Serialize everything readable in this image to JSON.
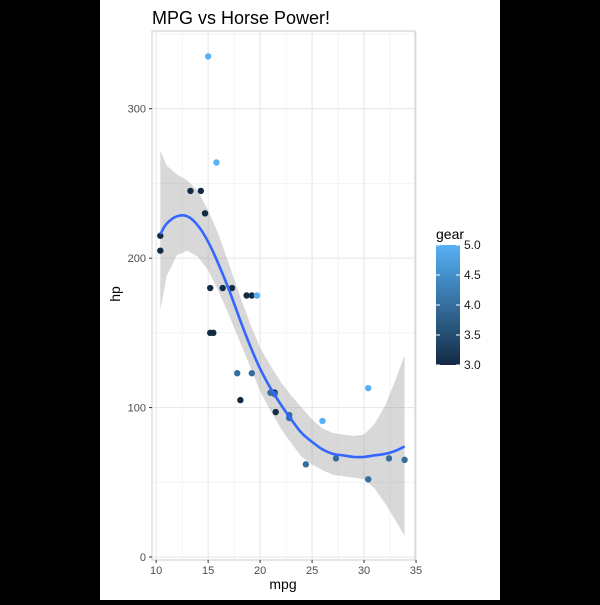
{
  "chart_data": {
    "type": "scatter",
    "title": "MPG vs Horse Power!",
    "xlabel": "mpg",
    "ylabel": "hp",
    "xlim": [
      9.6,
      34.9
    ],
    "ylim": [
      -2,
      352
    ],
    "x_ticks": [
      10,
      15,
      20,
      25,
      30,
      35
    ],
    "y_ticks": [
      0,
      100,
      200,
      300
    ],
    "grid": true,
    "legend": {
      "title": "gear",
      "placement": "right",
      "min": 3.0,
      "max": 5.0,
      "ticks": [
        "3.0",
        "3.5",
        "4.0",
        "4.5",
        "5.0"
      ],
      "color_low": "#132b43",
      "color_high": "#56b1f7"
    },
    "points": [
      {
        "x": 21.0,
        "y": 110,
        "gear": 4
      },
      {
        "x": 21.0,
        "y": 110,
        "gear": 4
      },
      {
        "x": 22.8,
        "y": 93,
        "gear": 4
      },
      {
        "x": 21.4,
        "y": 110,
        "gear": 3
      },
      {
        "x": 18.7,
        "y": 175,
        "gear": 3
      },
      {
        "x": 18.1,
        "y": 105,
        "gear": 3
      },
      {
        "x": 14.3,
        "y": 245,
        "gear": 3
      },
      {
        "x": 24.4,
        "y": 62,
        "gear": 4
      },
      {
        "x": 22.8,
        "y": 95,
        "gear": 4
      },
      {
        "x": 19.2,
        "y": 123,
        "gear": 4
      },
      {
        "x": 17.8,
        "y": 123,
        "gear": 4
      },
      {
        "x": 16.4,
        "y": 180,
        "gear": 3
      },
      {
        "x": 17.3,
        "y": 180,
        "gear": 3
      },
      {
        "x": 15.2,
        "y": 180,
        "gear": 3
      },
      {
        "x": 10.4,
        "y": 205,
        "gear": 3
      },
      {
        "x": 10.4,
        "y": 215,
        "gear": 3
      },
      {
        "x": 14.7,
        "y": 230,
        "gear": 3
      },
      {
        "x": 32.4,
        "y": 66,
        "gear": 4
      },
      {
        "x": 30.4,
        "y": 52,
        "gear": 4
      },
      {
        "x": 33.9,
        "y": 65,
        "gear": 4
      },
      {
        "x": 21.5,
        "y": 97,
        "gear": 3
      },
      {
        "x": 15.5,
        "y": 150,
        "gear": 3
      },
      {
        "x": 15.2,
        "y": 150,
        "gear": 3
      },
      {
        "x": 13.3,
        "y": 245,
        "gear": 3
      },
      {
        "x": 19.2,
        "y": 175,
        "gear": 3
      },
      {
        "x": 27.3,
        "y": 66,
        "gear": 4
      },
      {
        "x": 26.0,
        "y": 91,
        "gear": 5
      },
      {
        "x": 30.4,
        "y": 113,
        "gear": 5
      },
      {
        "x": 15.8,
        "y": 264,
        "gear": 5
      },
      {
        "x": 19.7,
        "y": 175,
        "gear": 5
      },
      {
        "x": 15.0,
        "y": 335,
        "gear": 5
      },
      {
        "x": 21.4,
        "y": 109,
        "gear": 4
      }
    ],
    "smooth": {
      "color": "#3366ff",
      "band_color": "#999999",
      "x": [
        10.4,
        11,
        12,
        13,
        14,
        15,
        16,
        17,
        18,
        19,
        20,
        21,
        22,
        23,
        24,
        25,
        26,
        27,
        28,
        29,
        30,
        31,
        32,
        33,
        33.9
      ],
      "y": [
        216,
        223,
        228,
        228,
        222,
        211,
        196,
        179,
        160,
        142,
        126,
        113,
        102,
        92,
        83,
        77,
        72,
        69,
        68,
        67,
        67,
        68,
        69,
        71,
        74
      ],
      "lower": [
        165,
        188,
        202,
        205,
        201,
        192,
        178,
        162,
        145,
        128,
        111,
        98,
        86,
        76,
        67,
        62,
        58,
        55,
        54,
        53,
        52,
        46,
        36,
        25,
        14
      ],
      "upper": [
        272,
        262,
        256,
        252,
        245,
        232,
        216,
        196,
        176,
        157,
        140,
        128,
        117,
        108,
        100,
        92,
        86,
        83,
        82,
        81,
        82,
        89,
        101,
        118,
        135
      ]
    }
  }
}
